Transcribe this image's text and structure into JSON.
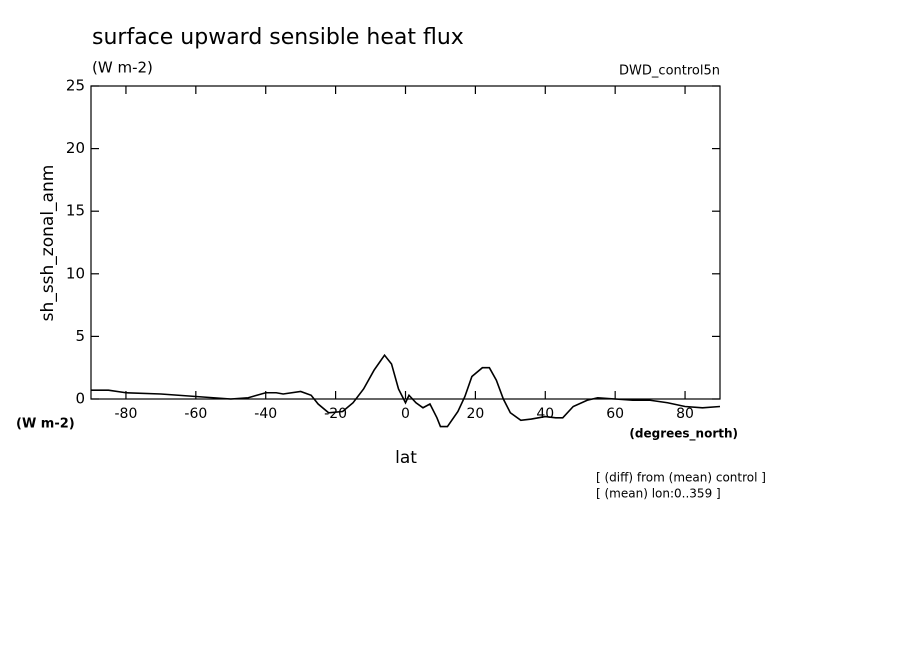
{
  "chart_data": {
    "type": "line",
    "title": "surface upward sensible heat flux",
    "subtitle": "(W m-2)",
    "dataset": "DWD_control5n",
    "y_label": "sh_ssh_zonal_anm",
    "y_units": "(W m-2)",
    "x_label": "lat",
    "x_units": "(degrees_north)",
    "notes": [
      "[ (diff) from (mean) control ]",
      "[ (mean) lon:0..359 ]"
    ],
    "x": [
      -90,
      -85,
      -80,
      -70,
      -60,
      -50,
      -45,
      -40,
      -37,
      -35,
      -30,
      -27,
      -25,
      -22,
      -18,
      -15,
      -12,
      -9,
      -6,
      -4,
      -2,
      0,
      1,
      3,
      5,
      7,
      9,
      10,
      12,
      15,
      17,
      19,
      22,
      24,
      26,
      28,
      30,
      33,
      36,
      40,
      43,
      45,
      48,
      52,
      55,
      60,
      65,
      70,
      75,
      80,
      85,
      90
    ],
    "series": [
      {
        "name": "sh_ssh_zonal_anm",
        "color": "#000000",
        "values": [
          0.7,
          0.7,
          0.5,
          0.4,
          0.2,
          0.0,
          0.1,
          0.5,
          0.5,
          0.4,
          0.6,
          0.3,
          -0.4,
          -1.1,
          -1.0,
          -0.3,
          0.8,
          2.3,
          3.5,
          2.8,
          0.8,
          -0.3,
          0.3,
          -0.3,
          -0.7,
          -0.4,
          -1.5,
          -2.2,
          -2.2,
          -1.0,
          0.2,
          1.8,
          2.5,
          2.5,
          1.5,
          0.0,
          -1.1,
          -1.7,
          -1.6,
          -1.4,
          -1.5,
          -1.5,
          -0.6,
          -0.1,
          0.1,
          0.0,
          -0.1,
          -0.1,
          -0.3,
          -0.6,
          -0.7,
          -0.6
        ]
      }
    ],
    "xlim": [
      -90,
      90
    ],
    "xticks": [
      -80,
      -60,
      -40,
      -20,
      0,
      20,
      40,
      60,
      80
    ],
    "ylim": [
      0,
      25
    ],
    "yticks": [
      0,
      5,
      10,
      15,
      20,
      25
    ]
  }
}
